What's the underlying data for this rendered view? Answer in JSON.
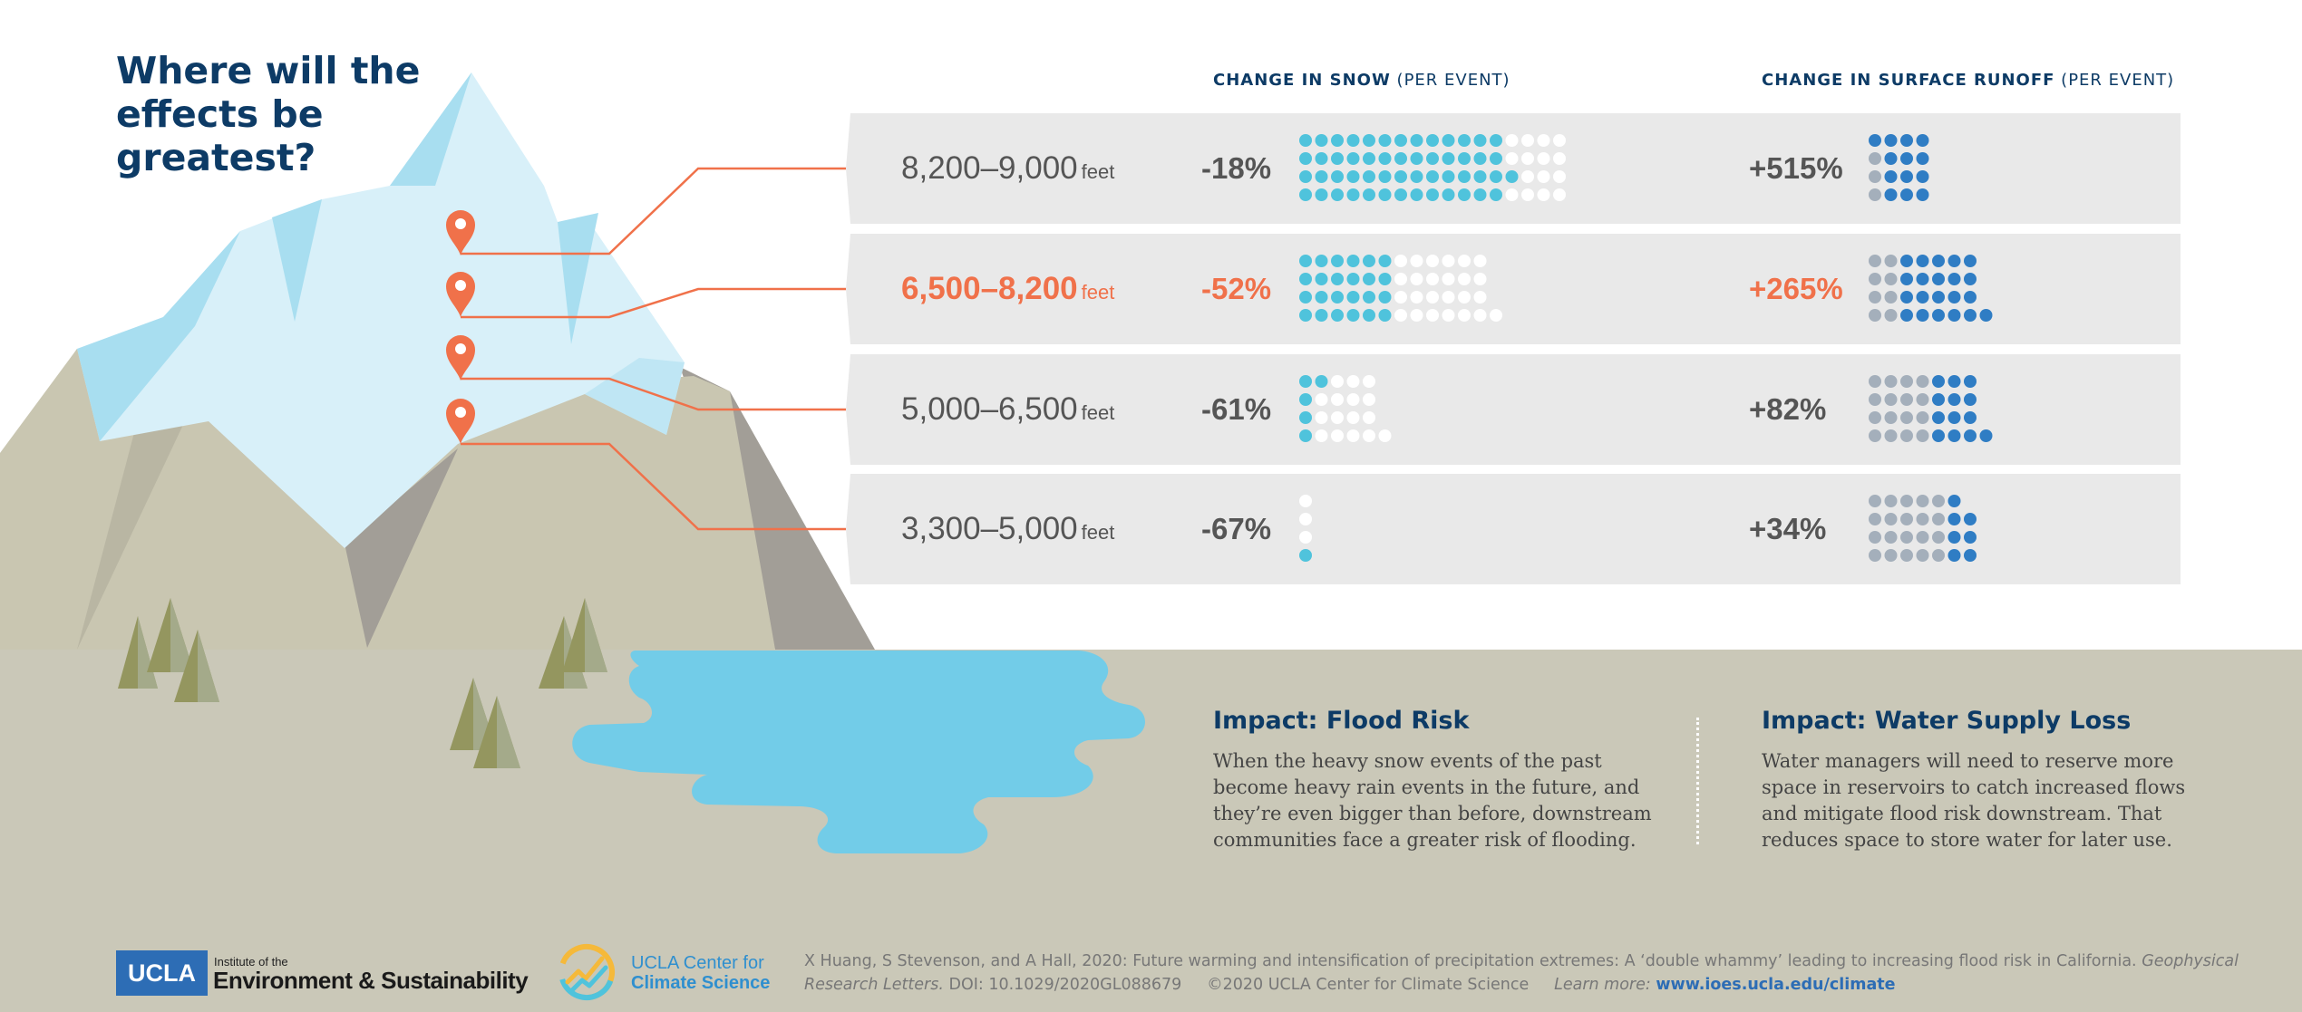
{
  "headline": "Where will the effects be greatest?",
  "columns": {
    "snow_bold": "CHANGE IN SNOW",
    "snow_rest": " (PER EVENT)",
    "runoff_bold": "CHANGE IN SURFACE RUNOFF",
    "runoff_rest": " (PER EVENT)"
  },
  "unit": "feet",
  "bands": [
    {
      "range": "8,200–9,000",
      "snow": "-18%",
      "runoff": "+515%",
      "highlight": false,
      "snow_rows": [
        [
          13,
          4
        ],
        [
          13,
          4
        ],
        [
          14,
          3
        ],
        [
          13,
          4
        ]
      ],
      "runoff_rows": [
        [
          0,
          4
        ],
        [
          1,
          3
        ],
        [
          1,
          3
        ],
        [
          1,
          3
        ]
      ]
    },
    {
      "range": "6,500–8,200",
      "snow": "-52%",
      "runoff": "+265%",
      "highlight": true,
      "snow_rows": [
        [
          6,
          6
        ],
        [
          6,
          6
        ],
        [
          6,
          6
        ],
        [
          6,
          7
        ]
      ],
      "runoff_rows": [
        [
          2,
          5
        ],
        [
          2,
          5
        ],
        [
          2,
          5
        ],
        [
          2,
          6
        ]
      ]
    },
    {
      "range": "5,000–6,500",
      "snow": "-61%",
      "runoff": "+82%",
      "highlight": false,
      "snow_rows": [
        [
          2,
          3
        ],
        [
          1,
          4
        ],
        [
          1,
          4
        ],
        [
          1,
          5
        ]
      ],
      "runoff_rows": [
        [
          4,
          3
        ],
        [
          4,
          3
        ],
        [
          4,
          3
        ],
        [
          4,
          4
        ]
      ]
    },
    {
      "range": "3,300–5,000",
      "snow": "-67%",
      "runoff": "+34%",
      "highlight": false,
      "snow_rows": [
        [
          0,
          1
        ],
        [
          0,
          1
        ],
        [
          0,
          1
        ],
        [
          1,
          0
        ]
      ],
      "runoff_rows": [
        [
          5,
          1
        ],
        [
          5,
          2
        ],
        [
          5,
          2
        ],
        [
          5,
          2
        ]
      ]
    }
  ],
  "impacts": [
    {
      "title": "Impact: Flood Risk",
      "text": "When the heavy snow events of the past become heavy rain events in the future, and they’re even bigger than before, downstream communities face a greater risk of flooding."
    },
    {
      "title": "Impact: Water Supply Loss",
      "text": "Water managers will need to reserve more space in reservoirs to catch increased flows and mitigate flood risk downstream. That reduces space to store water for later use."
    }
  ],
  "footer": {
    "ucla_logo": "UCLA",
    "institute_small": "Institute of the",
    "institute_big": "Environment & Sustainability",
    "ccs_line1": "UCLA Center for",
    "ccs_line2": "Climate Science",
    "citation_part1": "X Huang, S Stevenson, and A Hall, 2020: Future warming and intensification of precipitation extremes: A ‘double whammy’ leading to increasing flood risk in California.",
    "citation_journal": "Geophysical Research Letters.",
    "citation_doi": "DOI: 10.1029/2020GL088679",
    "copyright": "©2020 UCLA Center for Climate Science",
    "learn_more": "Learn more:",
    "url": "www.ioes.ucla.edu/climate"
  },
  "colors": {
    "navy": "#0d3b66",
    "orange": "#f0714a",
    "snow_dot": "#4fc3dc",
    "runoff_dot": "#2f7dc4",
    "grey_dot": "#a4afbb",
    "empty_dot": "#ffffff",
    "band_bg": "#e9e9e9",
    "ground": "#cac8b8",
    "water": "#72cce8"
  }
}
